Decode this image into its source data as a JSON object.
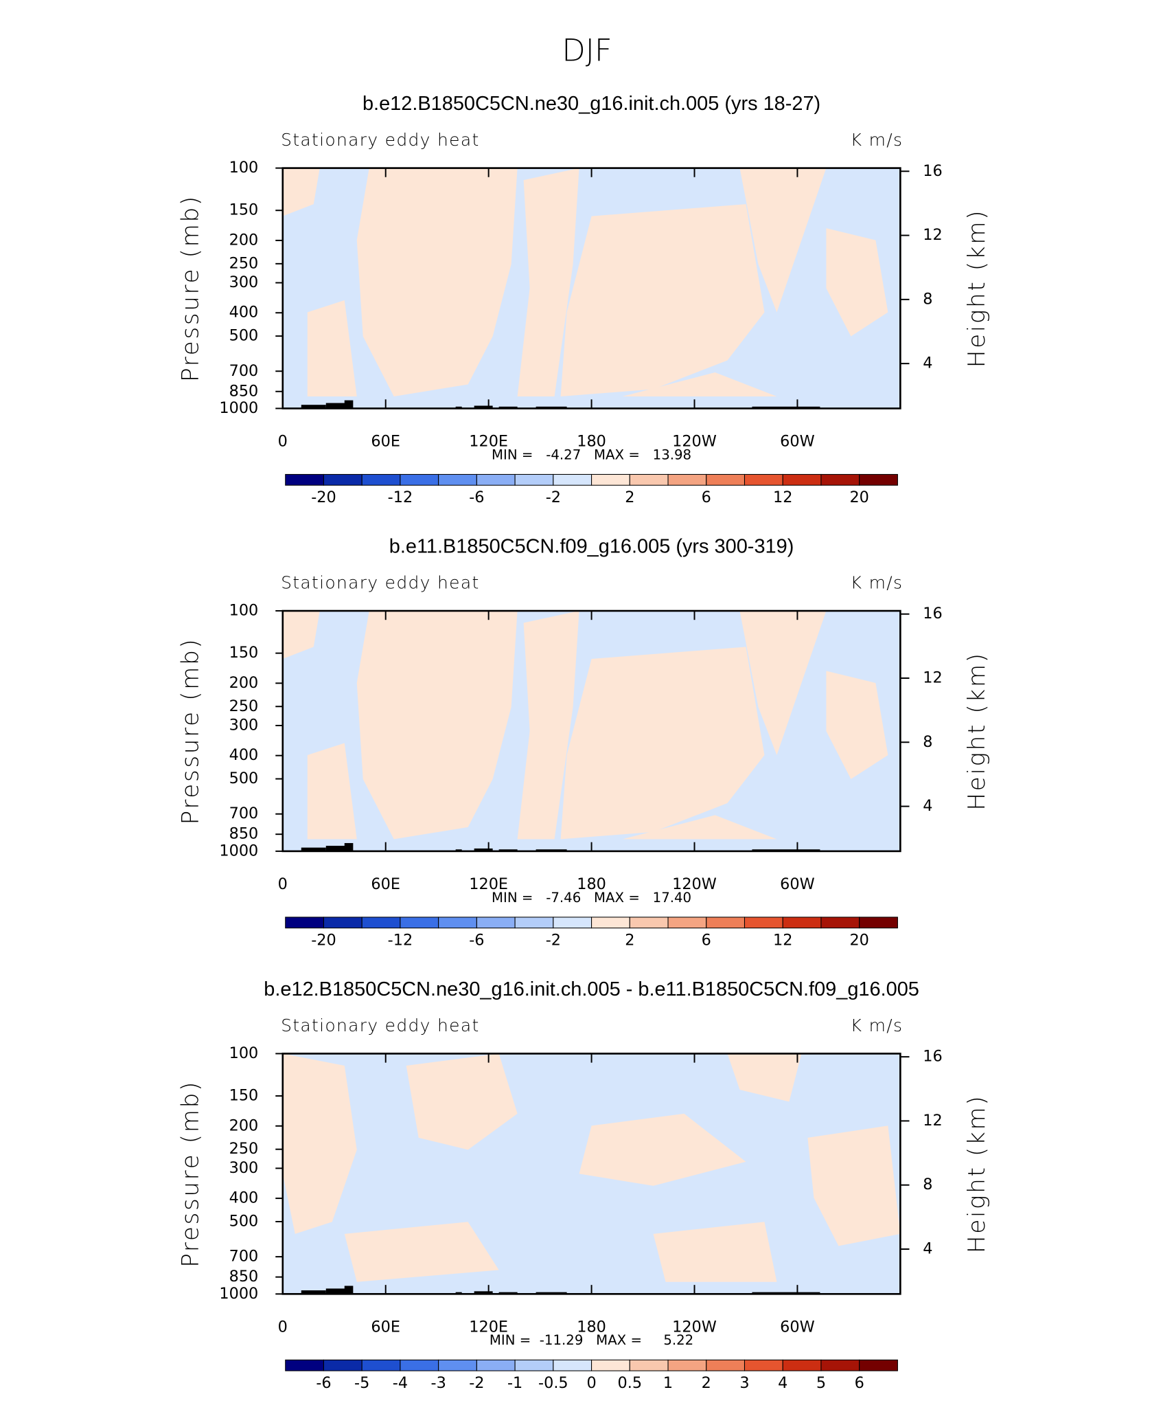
{
  "title": "DJF",
  "chart_data": [
    {
      "type": "contour",
      "title": "b.e12.B1850C5CN.ne30_g16.init.ch.005 (yrs 18-27)",
      "left_label": "Stationary eddy heat",
      "right_label": "K m/s",
      "ylabel": "Pressure (mb)",
      "y2label": "Height (km)",
      "log_y": true,
      "ylim": [
        1000,
        100
      ],
      "yticks": [
        100,
        150,
        200,
        250,
        300,
        400,
        500,
        700,
        850,
        1000
      ],
      "y2lim": [
        1.2,
        16.2
      ],
      "y2ticks": [
        4,
        8,
        12,
        16
      ],
      "xlim": [
        0,
        360
      ],
      "xticks": [
        0,
        {
          "value": 60,
          "label": "60E"
        },
        {
          "value": 120,
          "label": "120E"
        },
        180,
        {
          "value": 240,
          "label": "120W"
        },
        {
          "value": 300,
          "label": "60W"
        }
      ],
      "stats": "MIN =   -4.27   MAX =   13.98",
      "colorbar": {
        "colors": [
          "#000080",
          "#0a2aa8",
          "#1e4fd0",
          "#3a6fe6",
          "#5f8ff0",
          "#8aaef5",
          "#b3cdf9",
          "#d6e6fc",
          "#fde6d6",
          "#f9c8ae",
          "#f4a482",
          "#ee7f58",
          "#e6552f",
          "#cc2e12",
          "#a61407",
          "#740000"
        ],
        "ticks": [
          -20,
          -12,
          -6,
          -2,
          2,
          6,
          12,
          20
        ]
      }
    },
    {
      "type": "contour",
      "title": "b.e11.B1850C5CN.f09_g16.005 (yrs 300-319)",
      "left_label": "Stationary eddy heat",
      "right_label": "K m/s",
      "ylabel": "Pressure (mb)",
      "y2label": "Height (km)",
      "log_y": true,
      "ylim": [
        1000,
        100
      ],
      "yticks": [
        100,
        150,
        200,
        250,
        300,
        400,
        500,
        700,
        850,
        1000
      ],
      "y2lim": [
        1.2,
        16.2
      ],
      "y2ticks": [
        4,
        8,
        12,
        16
      ],
      "xlim": [
        0,
        360
      ],
      "xticks": [
        0,
        {
          "value": 60,
          "label": "60E"
        },
        {
          "value": 120,
          "label": "120E"
        },
        180,
        {
          "value": 240,
          "label": "120W"
        },
        {
          "value": 300,
          "label": "60W"
        }
      ],
      "stats": "MIN =   -7.46   MAX =   17.40",
      "colorbar": {
        "colors": [
          "#000080",
          "#0a2aa8",
          "#1e4fd0",
          "#3a6fe6",
          "#5f8ff0",
          "#8aaef5",
          "#b3cdf9",
          "#d6e6fc",
          "#fde6d6",
          "#f9c8ae",
          "#f4a482",
          "#ee7f58",
          "#e6552f",
          "#cc2e12",
          "#a61407",
          "#740000"
        ],
        "ticks": [
          -20,
          -12,
          -6,
          -2,
          2,
          6,
          12,
          20
        ]
      }
    },
    {
      "type": "contour",
      "title": "b.e12.B1850C5CN.ne30_g16.init.ch.005 - b.e11.B1850C5CN.f09_g16.005",
      "left_label": "Stationary eddy heat",
      "right_label": "K m/s",
      "ylabel": "Pressure (mb)",
      "y2label": "Height (km)",
      "log_y": true,
      "ylim": [
        1000,
        100
      ],
      "yticks": [
        100,
        150,
        200,
        250,
        300,
        400,
        500,
        700,
        850,
        1000
      ],
      "y2lim": [
        1.2,
        16.2
      ],
      "y2ticks": [
        4,
        8,
        12,
        16
      ],
      "xlim": [
        0,
        360
      ],
      "xticks": [
        0,
        {
          "value": 60,
          "label": "60E"
        },
        {
          "value": 120,
          "label": "120E"
        },
        180,
        {
          "value": 240,
          "label": "120W"
        },
        {
          "value": 300,
          "label": "60W"
        }
      ],
      "stats": "MIN =  -11.29   MAX =     5.22",
      "colorbar": {
        "colors": [
          "#000080",
          "#0a2aa8",
          "#1e4fd0",
          "#3a6fe6",
          "#5f8ff0",
          "#8aaef5",
          "#b3cdf9",
          "#d6e6fc",
          "#fde6d6",
          "#f9c8ae",
          "#f4a482",
          "#ee7f58",
          "#e6552f",
          "#cc2e12",
          "#a61407",
          "#740000"
        ],
        "ticks": [
          -6,
          -5,
          -4,
          -3,
          -2,
          -1,
          -0.5,
          0,
          0.5,
          1,
          2,
          3,
          4,
          5,
          6
        ]
      }
    }
  ]
}
